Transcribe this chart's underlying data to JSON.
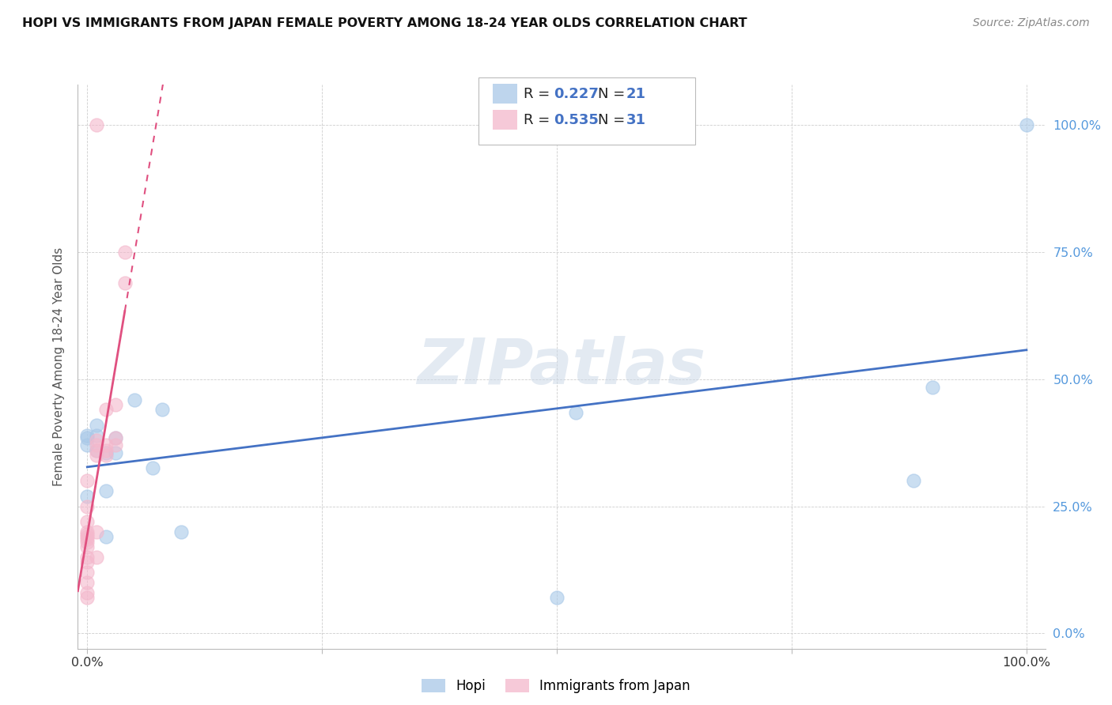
{
  "title": "HOPI VS IMMIGRANTS FROM JAPAN FEMALE POVERTY AMONG 18-24 YEAR OLDS CORRELATION CHART",
  "source": "Source: ZipAtlas.com",
  "ylabel": "Female Poverty Among 18-24 Year Olds",
  "hopi_color": "#a8c8e8",
  "japan_color": "#f4b8cc",
  "hopi_R": 0.227,
  "hopi_N": 21,
  "japan_R": 0.535,
  "japan_N": 31,
  "hopi_line_color": "#4472c4",
  "japan_line_color": "#e05080",
  "legend_R_color": "#4472c4",
  "legend_N_color": "#4472c4",
  "watermark": "ZIPatlas",
  "hopi_x": [
    0.0,
    0.0,
    0.0,
    0.0,
    0.01,
    0.01,
    0.01,
    0.02,
    0.02,
    0.02,
    0.03,
    0.03,
    0.05,
    0.07,
    0.08,
    0.1,
    0.5,
    0.52,
    0.88,
    0.9,
    1.0
  ],
  "hopi_y": [
    0.37,
    0.385,
    0.39,
    0.27,
    0.36,
    0.39,
    0.41,
    0.28,
    0.355,
    0.19,
    0.355,
    0.385,
    0.46,
    0.325,
    0.44,
    0.2,
    0.07,
    0.435,
    0.3,
    0.485,
    1.0
  ],
  "japan_x": [
    0.0,
    0.0,
    0.0,
    0.0,
    0.0,
    0.0,
    0.0,
    0.0,
    0.0,
    0.0,
    0.0,
    0.0,
    0.0,
    0.0,
    0.0,
    0.01,
    0.01,
    0.01,
    0.01,
    0.01,
    0.01,
    0.01,
    0.02,
    0.02,
    0.02,
    0.02,
    0.03,
    0.03,
    0.03,
    0.04,
    0.04
  ],
  "japan_y": [
    0.07,
    0.08,
    0.1,
    0.12,
    0.14,
    0.15,
    0.17,
    0.18,
    0.185,
    0.19,
    0.195,
    0.2,
    0.22,
    0.25,
    0.3,
    0.15,
    0.2,
    0.35,
    0.36,
    0.37,
    0.38,
    1.0,
    0.35,
    0.36,
    0.37,
    0.44,
    0.37,
    0.385,
    0.45,
    0.69,
    0.75
  ],
  "xlim": [
    -0.01,
    1.02
  ],
  "ylim": [
    -0.03,
    1.08
  ],
  "xtick_positions": [
    0.0,
    0.25,
    0.5,
    0.75,
    1.0
  ],
  "xtick_labels": [
    "0.0%",
    "",
    "",
    "",
    "100.0%"
  ],
  "ytick_positions": [
    0.0,
    0.25,
    0.5,
    0.75,
    1.0
  ],
  "ytick_labels_right": [
    "0.0%",
    "25.0%",
    "50.0%",
    "75.0%",
    "100.0%"
  ]
}
